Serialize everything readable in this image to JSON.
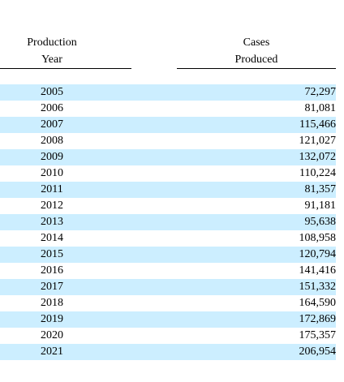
{
  "table": {
    "headers": [
      [
        "Production",
        "Year"
      ],
      [
        "Cases",
        "Produced"
      ]
    ],
    "rows": [
      [
        "2005",
        "72,297"
      ],
      [
        "2006",
        "81,081"
      ],
      [
        "2007",
        "115,466"
      ],
      [
        "2008",
        "121,027"
      ],
      [
        "2009",
        "132,072"
      ],
      [
        "2010",
        "110,224"
      ],
      [
        "2011",
        "81,357"
      ],
      [
        "2012",
        "91,181"
      ],
      [
        "2013",
        "95,638"
      ],
      [
        "2014",
        "108,958"
      ],
      [
        "2015",
        "120,794"
      ],
      [
        "2016",
        "141,416"
      ],
      [
        "2017",
        "151,332"
      ],
      [
        "2018",
        "164,590"
      ],
      [
        "2019",
        "172,869"
      ],
      [
        "2020",
        "175,357"
      ],
      [
        "2021",
        "206,954"
      ]
    ]
  }
}
